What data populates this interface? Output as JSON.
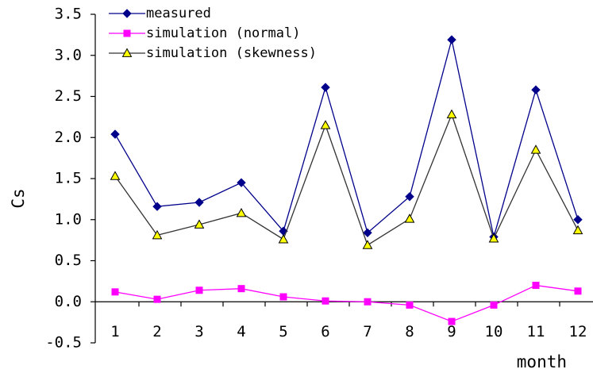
{
  "chart_data": {
    "type": "line",
    "title": "",
    "xlabel": "month",
    "ylabel": "Cs",
    "ylim": [
      -0.5,
      3.5
    ],
    "yticks": [
      "-0.5",
      "0.0",
      "0.5",
      "1.0",
      "1.5",
      "2.0",
      "2.5",
      "3.0",
      "3.5"
    ],
    "categories": [
      "1",
      "2",
      "3",
      "4",
      "5",
      "6",
      "7",
      "8",
      "9",
      "10",
      "11",
      "12"
    ],
    "grid": false,
    "legend_position": "top-left",
    "series": [
      {
        "name": "measured",
        "color": "#00008B",
        "marker": "diamond",
        "values": [
          2.04,
          1.16,
          1.21,
          1.45,
          0.86,
          2.61,
          0.84,
          1.28,
          3.19,
          0.79,
          2.58,
          1.0
        ]
      },
      {
        "name": "simulation (normal)",
        "color": "#FF00FF",
        "marker": "square",
        "values": [
          0.12,
          0.03,
          0.14,
          0.16,
          0.06,
          0.01,
          0.0,
          -0.04,
          -0.24,
          -0.04,
          0.2,
          0.13
        ]
      },
      {
        "name": "simulation (skewness)",
        "color": "#333333",
        "marker_fill": "#FFFF00",
        "marker": "triangle",
        "values": [
          1.53,
          0.81,
          0.94,
          1.08,
          0.76,
          2.15,
          0.69,
          1.01,
          2.28,
          0.77,
          1.85,
          0.87
        ]
      }
    ]
  }
}
